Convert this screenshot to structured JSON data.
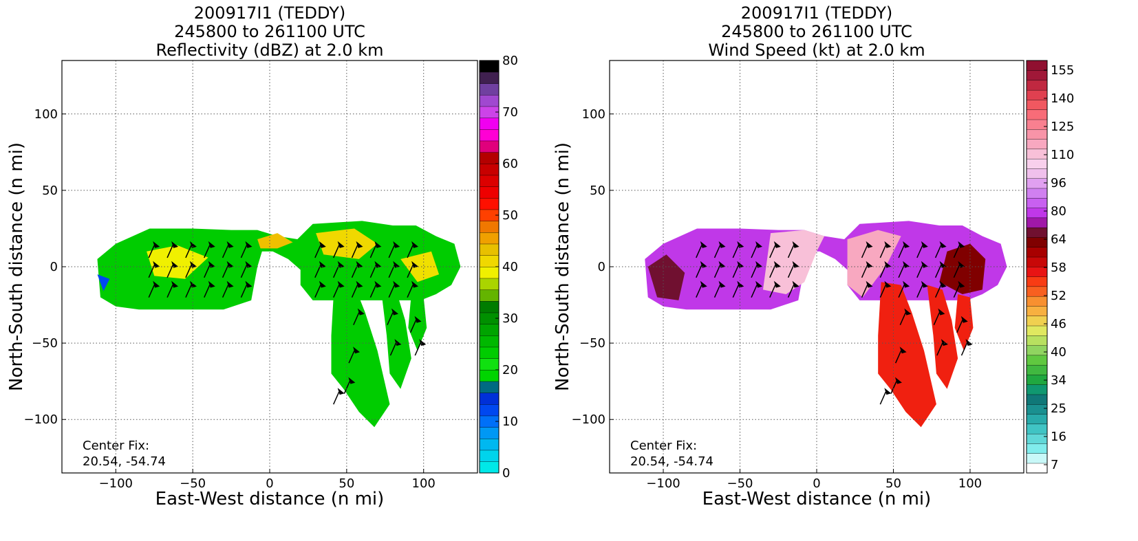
{
  "chart_data": [
    {
      "type": "heatmap",
      "title": [
        "200917I1 (TEDDY)",
        "245800 to 261100 UTC",
        "Reflectivity (dBZ) at 2.0 km"
      ],
      "xlabel": "East-West distance (n mi)",
      "ylabel": "North-South distance (n mi)",
      "xlim": [
        -135,
        135
      ],
      "ylim": [
        -135,
        135
      ],
      "xticks": [
        -100,
        -50,
        0,
        50,
        100
      ],
      "yticks": [
        -100,
        -50,
        0,
        50,
        100
      ],
      "xtick_labels": [
        "−100",
        "−50",
        "0",
        "50",
        "100"
      ],
      "ytick_labels": [
        "−100",
        "−50",
        "0",
        "50",
        "100"
      ],
      "grid": true,
      "annotation": [
        "Center Fix:",
        "20.54, -54.74"
      ],
      "colorbar": {
        "min": 0,
        "max": 80,
        "step": 2.5,
        "tick_values": [
          0,
          10,
          20,
          30,
          40,
          50,
          60,
          70,
          80
        ],
        "tick_labels": [
          "0",
          "10",
          "20",
          "30",
          "40",
          "50",
          "60",
          "70",
          "80"
        ],
        "colors": [
          "#00e8e8",
          "#00d4ec",
          "#00b8f0",
          "#0098f4",
          "#0070f8",
          "#0048f0",
          "#0030d8",
          "#006a82",
          "#00d400",
          "#10e010",
          "#00cc00",
          "#00b800",
          "#00a400",
          "#009000",
          "#007c00",
          "#64b400",
          "#aad400",
          "#f0f000",
          "#f0d800",
          "#e8c000",
          "#f0a000",
          "#f07800",
          "#ff4000",
          "#ff1000",
          "#ee0000",
          "#dc0000",
          "#c80000",
          "#b40000",
          "#e0007c",
          "#ff00d4",
          "#f000f0",
          "#cc44e8",
          "#a048d0",
          "#7040a0",
          "#402050",
          "#000000"
        ]
      }
    },
    {
      "type": "heatmap",
      "title": [
        "200917I1 (TEDDY)",
        "245800 to 261100 UTC",
        "Wind Speed (kt) at 2.0 km"
      ],
      "xlabel": "East-West distance (n mi)",
      "ylabel": "North-South distance (n mi)",
      "xlim": [
        -135,
        135
      ],
      "ylim": [
        -135,
        135
      ],
      "xticks": [
        -100,
        -50,
        0,
        50,
        100
      ],
      "yticks": [
        -100,
        -50,
        0,
        50,
        100
      ],
      "xtick_labels": [
        "−100",
        "−50",
        "0",
        "50",
        "100"
      ],
      "ytick_labels": [
        "−100",
        "−50",
        "0",
        "50",
        "100"
      ],
      "grid": true,
      "annotation": [
        "Center Fix:",
        "20.54, -54.74"
      ],
      "colorbar": {
        "tick_labels": [
          "7",
          "16",
          "25",
          "34",
          "40",
          "46",
          "52",
          "58",
          "64",
          "80",
          "96",
          "110",
          "125",
          "140",
          "155"
        ],
        "colors": [
          "#ffffff",
          "#c8f8f8",
          "#80ecec",
          "#60d8d8",
          "#40c4c4",
          "#28aaaa",
          "#1a9090",
          "#107878",
          "#109870",
          "#20a840",
          "#40b840",
          "#60c840",
          "#90d460",
          "#b8e060",
          "#e0e860",
          "#f0d050",
          "#f8b040",
          "#f89030",
          "#f86020",
          "#f83c14",
          "#e81414",
          "#c80808",
          "#a80000",
          "#800000",
          "#701030",
          "#a018a8",
          "#c038e8",
          "#c860f0",
          "#d080f0",
          "#e0a0f0",
          "#f0c0ec",
          "#f8d0ec",
          "#f8c0d8",
          "#f8a8c0",
          "#f894a8",
          "#f88090",
          "#f86c78",
          "#f05860",
          "#e04050",
          "#c02840",
          "#a01838",
          "#901030"
        ]
      }
    }
  ]
}
